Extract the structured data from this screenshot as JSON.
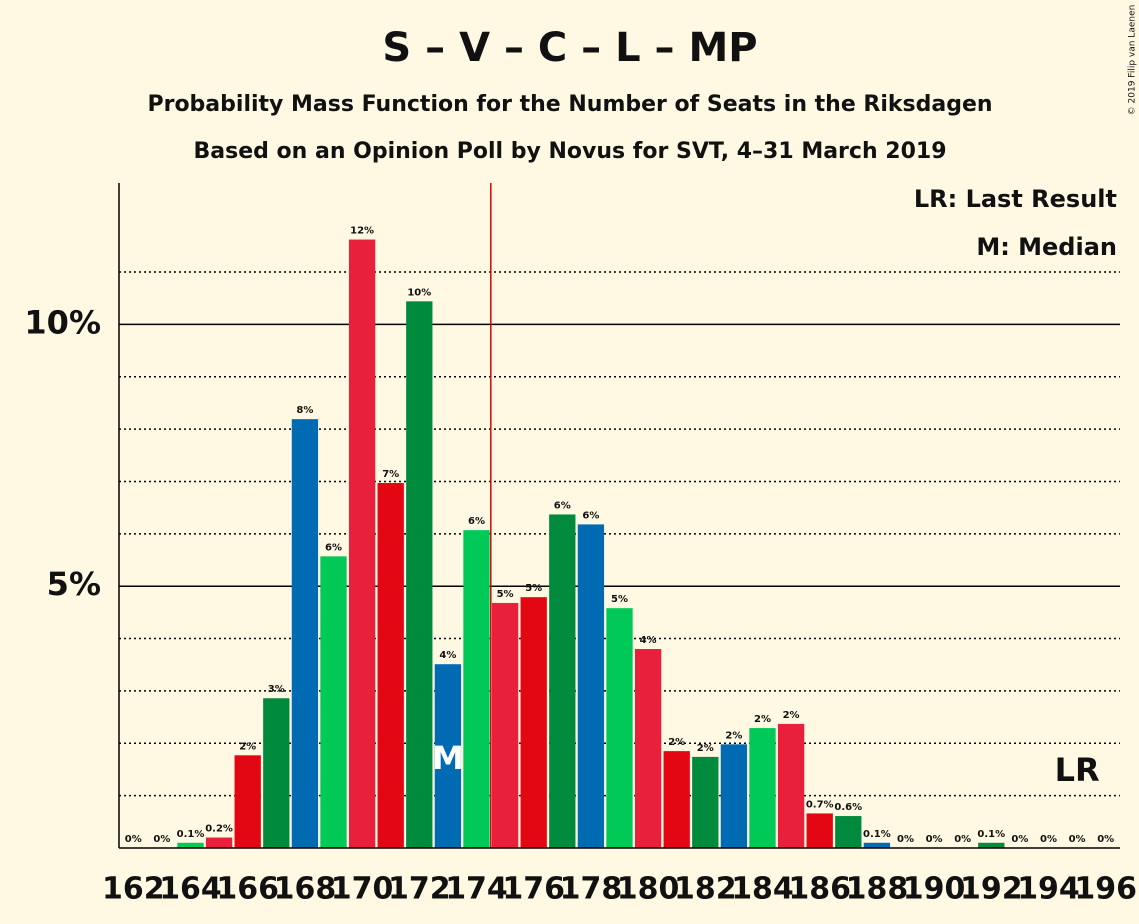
{
  "chart_data": {
    "type": "bar",
    "title": "S – V – C – L – MP",
    "subtitle": "Probability Mass Function for the Number of Seats in the Riksdagen",
    "subtitle2": "Based on an Opinion Poll by Novus for SVT, 4–31 March 2019",
    "copyright": "© 2019 Filip van Laenen",
    "legend": [
      "LR: Last Result",
      "M: Median"
    ],
    "x": [
      162,
      163,
      164,
      165,
      166,
      167,
      168,
      169,
      170,
      171,
      172,
      173,
      174,
      175,
      176,
      177,
      178,
      179,
      180,
      181,
      182,
      183,
      184,
      185,
      186,
      187,
      188,
      189,
      190,
      191,
      192,
      193,
      194,
      195,
      196
    ],
    "values": [
      0,
      0,
      0.1,
      0.2,
      1.77,
      2.86,
      8.19,
      5.57,
      11.62,
      6.97,
      10.44,
      3.51,
      6.07,
      4.68,
      4.79,
      6.37,
      6.18,
      4.58,
      3.8,
      1.85,
      1.74,
      1.98,
      2.29,
      2.37,
      0.66,
      0.61,
      0.1,
      0,
      0,
      0,
      0.1,
      0,
      0,
      0,
      0
    ],
    "value_labels": [
      "0%",
      "0%",
      "0.1%",
      "0.2%",
      "2%",
      "3%",
      "8%",
      "6%",
      "12%",
      "7%",
      "10%",
      "4%",
      "6%",
      "5%",
      "5%",
      "6%",
      "6%",
      "5%",
      "4%",
      "2%",
      "2%",
      "2%",
      "2%",
      "2%",
      "0.7%",
      "0.6%",
      "0.1%",
      "0%",
      "0%",
      "0%",
      "0.1%",
      "0%",
      "0%",
      "0%",
      "0%"
    ],
    "colors": [
      "#008a3e",
      "#006ab3",
      "#00c957",
      "#e8203b",
      "#e30613",
      "#008a3e",
      "#006ab3",
      "#00c957",
      "#e8203b",
      "#e30613",
      "#008a3e",
      "#006ab3",
      "#00c957",
      "#e8203b",
      "#e30613",
      "#008a3e",
      "#006ab3",
      "#00c957",
      "#e8203b",
      "#e30613",
      "#008a3e",
      "#006ab3",
      "#00c957",
      "#e8203b",
      "#e30613",
      "#008a3e",
      "#006ab3",
      "#00c957",
      "#e8203b",
      "#e30613",
      "#008a3e",
      "#006ab3",
      "#00c957",
      "#e8203b",
      "#e30613"
    ],
    "xlim": [
      161.5,
      196.5
    ],
    "xticks": [
      162,
      164,
      166,
      168,
      170,
      172,
      174,
      176,
      178,
      180,
      182,
      184,
      186,
      188,
      190,
      192,
      194,
      196
    ],
    "ylim": [
      0,
      12.7
    ],
    "yticks": [
      {
        "value": 5,
        "label": "5%"
      },
      {
        "value": 10,
        "label": "10%"
      }
    ],
    "minor_grid": [
      1,
      2,
      3,
      4,
      6,
      7,
      8,
      9,
      11
    ],
    "majority": 174.5,
    "median": {
      "text": "M",
      "seat": 173
    },
    "last_result": {
      "text": "LR",
      "seat": 195
    }
  }
}
